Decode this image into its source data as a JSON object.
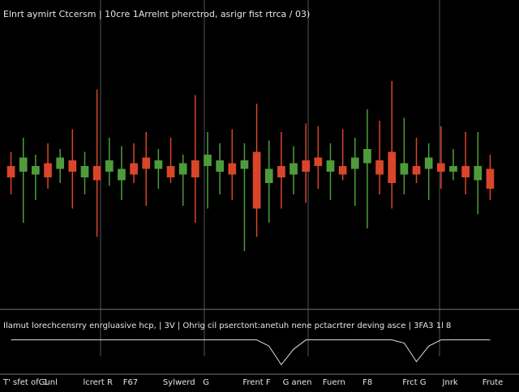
{
  "chart_data": {
    "type": "candlestick",
    "title": "Elnrt aymirt Ctcersm | 10cre 1Arrelnt pherctrod, asrigr fist rtrca / 03)",
    "panel_label": "Ilamut lorechcensrry enrgluasive hcp, | 3V | Ohrig cil pserctont:anetuh nene pctacrtrer deving asce | 3FA3 1l 8",
    "footer_labels": [
      "T' sfet ofGunl",
      "1",
      "lcrert R",
      "F67",
      "Sylwerd",
      "G",
      "Frent F",
      "G anen",
      "Fuern",
      "F8",
      "Frct G",
      "Jnrk",
      "Frute"
    ],
    "ylim": [
      0,
      100
    ],
    "up_color": "#4f9b3c",
    "down_color": "#d9452b",
    "open": [
      50,
      48,
      47,
      51,
      49,
      52,
      46,
      50,
      48,
      45,
      51,
      53,
      49,
      50,
      47,
      52,
      50,
      48,
      51,
      49,
      55,
      44,
      50,
      47,
      52,
      53,
      48,
      50,
      49,
      51,
      52,
      55,
      47,
      50,
      49,
      51,
      48,
      50,
      45,
      49
    ],
    "high": [
      55,
      60,
      54,
      58,
      56,
      63,
      55,
      77,
      60,
      57,
      58,
      62,
      56,
      60,
      54,
      75,
      62,
      58,
      63,
      58,
      72,
      59,
      62,
      57,
      65,
      64,
      58,
      63,
      60,
      70,
      66,
      80,
      67,
      60,
      58,
      64,
      56,
      62,
      62,
      54
    ],
    "low": [
      40,
      30,
      38,
      42,
      44,
      35,
      40,
      25,
      43,
      38,
      44,
      36,
      42,
      44,
      36,
      30,
      35,
      40,
      38,
      20,
      25,
      30,
      35,
      40,
      37,
      42,
      38,
      45,
      36,
      28,
      40,
      35,
      40,
      44,
      38,
      42,
      45,
      40,
      33,
      38
    ],
    "close": [
      46,
      53,
      50,
      46,
      53,
      48,
      50,
      45,
      52,
      49,
      47,
      49,
      52,
      46,
      51,
      46,
      54,
      52,
      47,
      52,
      35,
      49,
      46,
      51,
      48,
      50,
      52,
      47,
      53,
      56,
      47,
      44,
      51,
      47,
      53,
      48,
      50,
      46,
      50,
      42
    ],
    "indicator": [
      0,
      0,
      0,
      0,
      0,
      0,
      0,
      0,
      0,
      0,
      0,
      0,
      0,
      0,
      0,
      0,
      0,
      0,
      0,
      0,
      0,
      -2,
      -8,
      -3,
      0,
      0,
      0,
      0,
      0,
      0,
      0,
      0,
      -1,
      -7,
      -2,
      0,
      0,
      0,
      0,
      0
    ],
    "indicator_ylim": [
      -10,
      2
    ]
  }
}
